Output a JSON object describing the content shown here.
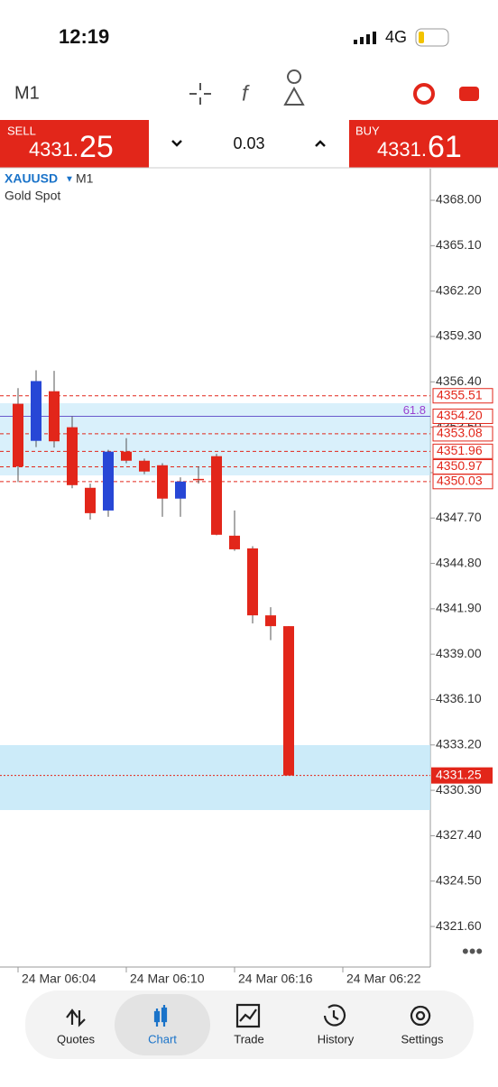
{
  "status": {
    "time": "12:19",
    "network": "4G"
  },
  "toolbar": {
    "timeframe": "M1"
  },
  "trade_bar": {
    "sell": {
      "label": "SELL",
      "price_small": "4331.",
      "price_big": "25"
    },
    "volume": "0.03",
    "buy": {
      "label": "BUY",
      "price_small": "4331.",
      "price_big": "61"
    }
  },
  "chart": {
    "type": "candlestick",
    "symbol": "XAUUSD",
    "timeframe": "M1",
    "description": "Gold Spot",
    "categories": [
      "24 Mar 06:04",
      null,
      null,
      null,
      null,
      null,
      "24 Mar 06:10",
      null,
      null,
      null,
      null,
      null,
      "24 Mar 06:16",
      null,
      null,
      null,
      null,
      null,
      "24 Mar 06:22"
    ],
    "open": [
      4355.0,
      4352.63,
      4355.8,
      4353.5,
      4349.63,
      4348.18,
      4351.94,
      4351.36,
      4351.07,
      4348.94,
      4350.2,
      4351.65,
      4346.57,
      4345.76,
      4341.48,
      4340.79,
      null,
      null,
      null
    ],
    "high": [
      4356.0,
      4357.14,
      4357.1,
      4354.2,
      4349.9,
      4352.06,
      4352.8,
      4351.5,
      4351.2,
      4350.3,
      4351.0,
      4351.8,
      4348.18,
      4345.9,
      4342.0,
      4340.79,
      null,
      null,
      null
    ],
    "low": [
      4350.0,
      4352.23,
      4352.2,
      4349.6,
      4347.6,
      4347.78,
      4351.2,
      4350.5,
      4347.78,
      4347.78,
      4349.9,
      4346.6,
      4345.6,
      4340.96,
      4339.9,
      4331.25,
      null,
      null,
      null
    ],
    "close": [
      4351.0,
      4356.45,
      4352.6,
      4349.8,
      4348.01,
      4351.94,
      4351.36,
      4350.67,
      4348.94,
      4350.03,
      4350.2,
      4346.63,
      4345.7,
      4341.48,
      4340.79,
      4331.25,
      null,
      null,
      null
    ],
    "bull_color": "#2747d6",
    "bear_color": "#e2261a",
    "ylim": [
      4319.01,
      4370.02
    ],
    "yticks": [
      {
        "value": 4368,
        "label": "4368.00"
      },
      {
        "value": 4365.1,
        "label": "4365.10"
      },
      {
        "value": 4362.2,
        "label": "4362.20"
      },
      {
        "value": 4359.3,
        "label": "4359.30"
      },
      {
        "value": 4356.4,
        "label": "4356.40"
      },
      {
        "value": 4353.5,
        "label": "4353.50"
      },
      {
        "value": 4350.6,
        "label": "4350.60"
      },
      {
        "value": 4347.7,
        "label": "4347.70"
      },
      {
        "value": 4344.8,
        "label": "4344.80"
      },
      {
        "value": 4341.9,
        "label": "4341.90"
      },
      {
        "value": 4339,
        "label": "4339.00"
      },
      {
        "value": 4336.1,
        "label": "4336.10"
      },
      {
        "value": 4333.2,
        "label": "4333.20"
      },
      {
        "value": 4330.3,
        "label": "4330.30"
      },
      {
        "value": 4327.4,
        "label": "4327.40"
      },
      {
        "value": 4324.5,
        "label": "4324.50"
      },
      {
        "value": 4321.6,
        "label": "4321.60"
      }
    ],
    "levels": {
      "values": [
        4355.51,
        4354.2,
        4353.08,
        4351.96,
        4350.97,
        4350.03
      ],
      "value_labels": [
        "4355.51",
        "4354.20",
        "4353.08",
        "4351.96",
        "4350.97",
        "4350.03"
      ]
    },
    "fib": {
      "value": 4354.2,
      "label": "61.8"
    },
    "bid": {
      "value": 4331.25,
      "label": "4331.25"
    }
  },
  "nav": [
    "Quotes",
    "Chart",
    "Trade",
    "History",
    "Settings"
  ]
}
